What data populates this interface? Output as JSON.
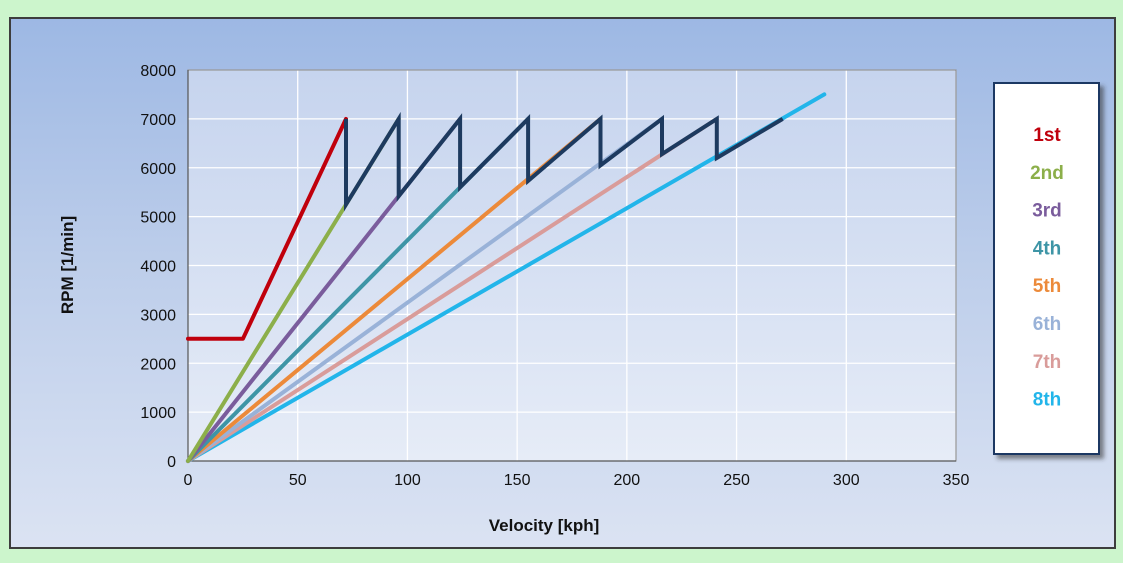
{
  "chart_data": {
    "type": "line",
    "title": "",
    "xlabel": "Velocity  [kph]",
    "ylabel": "RPM  [1/min]",
    "xlim": [
      0,
      350
    ],
    "ylim": [
      0,
      8000
    ],
    "x_ticks": [
      0,
      50,
      100,
      150,
      200,
      250,
      300,
      350
    ],
    "y_ticks": [
      0,
      1000,
      2000,
      3000,
      4000,
      5000,
      6000,
      7000,
      8000
    ],
    "grid": true,
    "legend_position": "right",
    "series": [
      {
        "name": "1st",
        "color": "#c0000c",
        "x": [
          0,
          25,
          72
        ],
        "y": [
          2500,
          2500,
          7000
        ]
      },
      {
        "name": "2nd",
        "color": "#8caf4a",
        "x": [
          0,
          96
        ],
        "y": [
          0,
          7000
        ]
      },
      {
        "name": "3rd",
        "color": "#7a5c9c",
        "x": [
          0,
          124
        ],
        "y": [
          0,
          7000
        ]
      },
      {
        "name": "4th",
        "color": "#3e95a6",
        "x": [
          0,
          155
        ],
        "y": [
          0,
          7000
        ]
      },
      {
        "name": "5th",
        "color": "#ec8a3a",
        "x": [
          0,
          188
        ],
        "y": [
          0,
          7000
        ]
      },
      {
        "name": "6th",
        "color": "#99b2d8",
        "x": [
          0,
          216
        ],
        "y": [
          0,
          7000
        ]
      },
      {
        "name": "7th",
        "color": "#d99c9a",
        "x": [
          0,
          241
        ],
        "y": [
          0,
          7000
        ]
      },
      {
        "name": "8th",
        "color": "#22b5ea",
        "x": [
          0,
          290
        ],
        "y": [
          0,
          7500
        ]
      }
    ],
    "shift_path": {
      "color": "#1d3a5f",
      "x": [
        72,
        72,
        96,
        96,
        124,
        124,
        155,
        155,
        188,
        188,
        216,
        216,
        241,
        241,
        271
      ],
      "y": [
        7000,
        5250,
        7000,
        5420,
        7000,
        5600,
        7000,
        5730,
        7000,
        6050,
        7000,
        6280,
        7000,
        6200,
        7000
      ]
    }
  }
}
